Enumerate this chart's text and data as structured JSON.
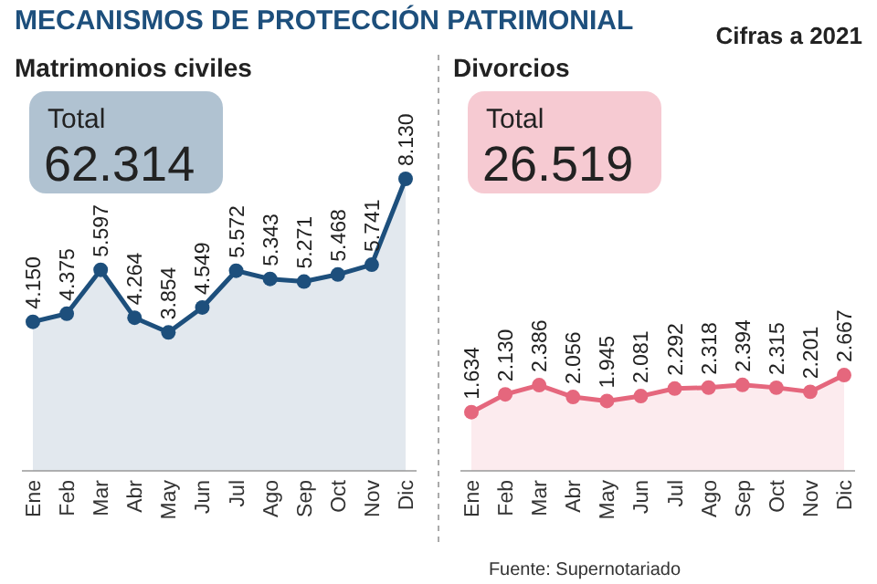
{
  "chart_data": [
    {
      "type": "other",
      "title": "MECANISMOS DE PROTECCIÓN PATRIMONIAL",
      "subtitle": "Cifras a 2021",
      "annotations": [
        "Fuente: Supernotariado"
      ]
    },
    {
      "type": "area",
      "title": "Matrimonios civiles",
      "annotations": [
        "Total",
        "62.314"
      ],
      "categories": [
        "Ene",
        "Feb",
        "Mar",
        "Abr",
        "May",
        "Jun",
        "Jul",
        "Ago",
        "Sep",
        "Oct",
        "Nov",
        "Dic"
      ],
      "marker": "circle",
      "series": [
        {
          "color": "#1d4f7c",
          "values": [
            4150,
            4375,
            5597,
            4264,
            3854,
            4549,
            5572,
            5343,
            5271,
            5468,
            5741,
            8130
          ],
          "value_labels": [
            "4.150",
            "4.375",
            "5.597",
            "4.264",
            "3.854",
            "4.549",
            "5.572",
            "5.343",
            "5.271",
            "5.468",
            "5.741",
            "8.130"
          ]
        }
      ]
    },
    {
      "type": "area",
      "title": "Divorcios",
      "annotations": [
        "Total",
        "26.519"
      ],
      "categories": [
        "Ene",
        "Feb",
        "Mar",
        "Abr",
        "May",
        "Jun",
        "Jul",
        "Ago",
        "Sep",
        "Oct",
        "Nov",
        "Dic"
      ],
      "marker": "circle",
      "series": [
        {
          "color": "#e5677d",
          "values": [
            1634,
            2130,
            2386,
            2056,
            1945,
            2081,
            2292,
            2318,
            2394,
            2315,
            2201,
            2667
          ],
          "value_labels": [
            "1.634",
            "2.130",
            "2.386",
            "2.056",
            "1.945",
            "2.081",
            "2.292",
            "2.318",
            "2.394",
            "2.315",
            "2.201",
            "2.667"
          ]
        }
      ]
    }
  ]
}
